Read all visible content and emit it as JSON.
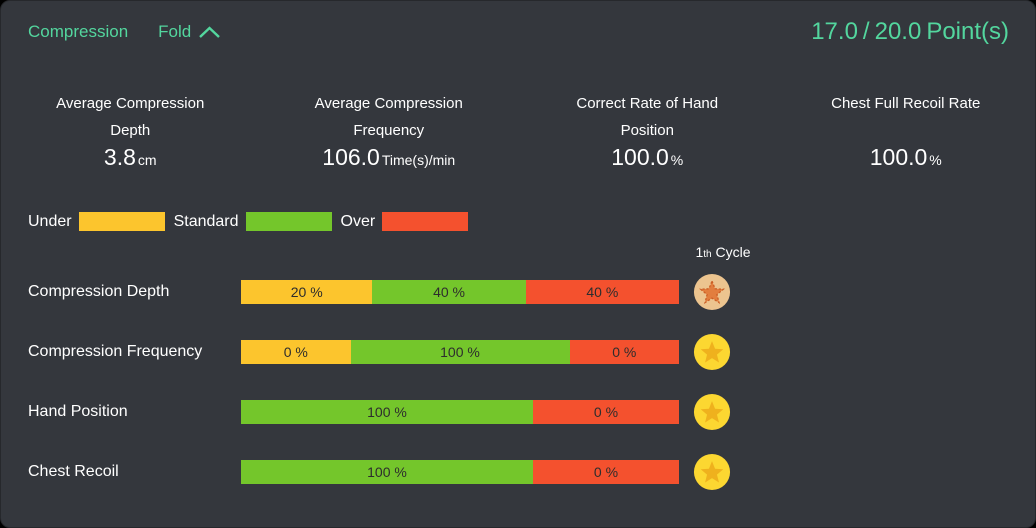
{
  "colors": {
    "accent": "#53d69e",
    "panel_bg": "#34373d",
    "bar_label_text": "#2d2d2d"
  },
  "band_colors": {
    "under": "#fcc52d",
    "standard": "#74c62b",
    "over": "#f4512e"
  },
  "medal_styles": {
    "gold": {
      "circle": "#fcd731",
      "star": "#efb11d",
      "star_stroke": "none"
    },
    "bronze": {
      "circle": "#ecc48f",
      "star": "#e27e3e",
      "star_stroke": "#cb5f26"
    }
  },
  "header": {
    "title": "Compression",
    "fold_label": "Fold",
    "score": {
      "current": "17.0",
      "separator": "/",
      "total": "20.0",
      "unit": "Point(s)"
    }
  },
  "stats": [
    {
      "label": "Average Compression Depth",
      "value": "3.8",
      "unit": "cm"
    },
    {
      "label": "Average Compression Frequency",
      "value": "106.0",
      "unit": "Time(s)/min"
    },
    {
      "label": "Correct Rate of Hand Position",
      "value": "100.0",
      "unit": "%"
    },
    {
      "label": "Chest Full Recoil Rate",
      "value": "100.0",
      "unit": "%"
    }
  ],
  "legend": [
    {
      "label": "Under",
      "band": "under"
    },
    {
      "label": "Standard",
      "band": "standard"
    },
    {
      "label": "Over",
      "band": "over"
    }
  ],
  "cycle_header": {
    "number": "1",
    "ordinal": "th",
    "word": "Cycle"
  },
  "rows": [
    {
      "label": "Compression Depth",
      "medal": "bronze",
      "segments": [
        {
          "band": "under",
          "value": 20,
          "text": "20 %"
        },
        {
          "band": "standard",
          "value": 40,
          "text": "40 %"
        },
        {
          "band": "over",
          "value": 40,
          "text": "40 %"
        }
      ]
    },
    {
      "label": "Compression Frequency",
      "medal": "gold",
      "segments": [
        {
          "band": "under",
          "value": 0,
          "text": "0 %"
        },
        {
          "band": "standard",
          "value": 100,
          "text": "100 %"
        },
        {
          "band": "over",
          "value": 0,
          "text": "0 %"
        }
      ]
    },
    {
      "label": "Hand Position",
      "medal": "gold",
      "segments": [
        {
          "band": "standard",
          "value": 100,
          "text": "100 %"
        },
        {
          "band": "over",
          "value": 0,
          "text": "0 %"
        }
      ]
    },
    {
      "label": "Chest Recoil",
      "medal": "gold",
      "segments": [
        {
          "band": "standard",
          "value": 100,
          "text": "100 %"
        },
        {
          "band": "over",
          "value": 0,
          "text": "0 %"
        }
      ]
    }
  ],
  "chart_data": {
    "type": "bar",
    "stacked": true,
    "orientation": "horizontal",
    "categories": [
      "Compression Depth",
      "Compression Frequency",
      "Hand Position",
      "Chest Recoil"
    ],
    "series": [
      {
        "name": "Under",
        "values": [
          20,
          0,
          null,
          null
        ]
      },
      {
        "name": "Standard",
        "values": [
          40,
          100,
          100,
          100
        ]
      },
      {
        "name": "Over",
        "values": [
          40,
          0,
          0,
          0
        ]
      }
    ],
    "unit": "%",
    "legend_position": "top-left"
  }
}
